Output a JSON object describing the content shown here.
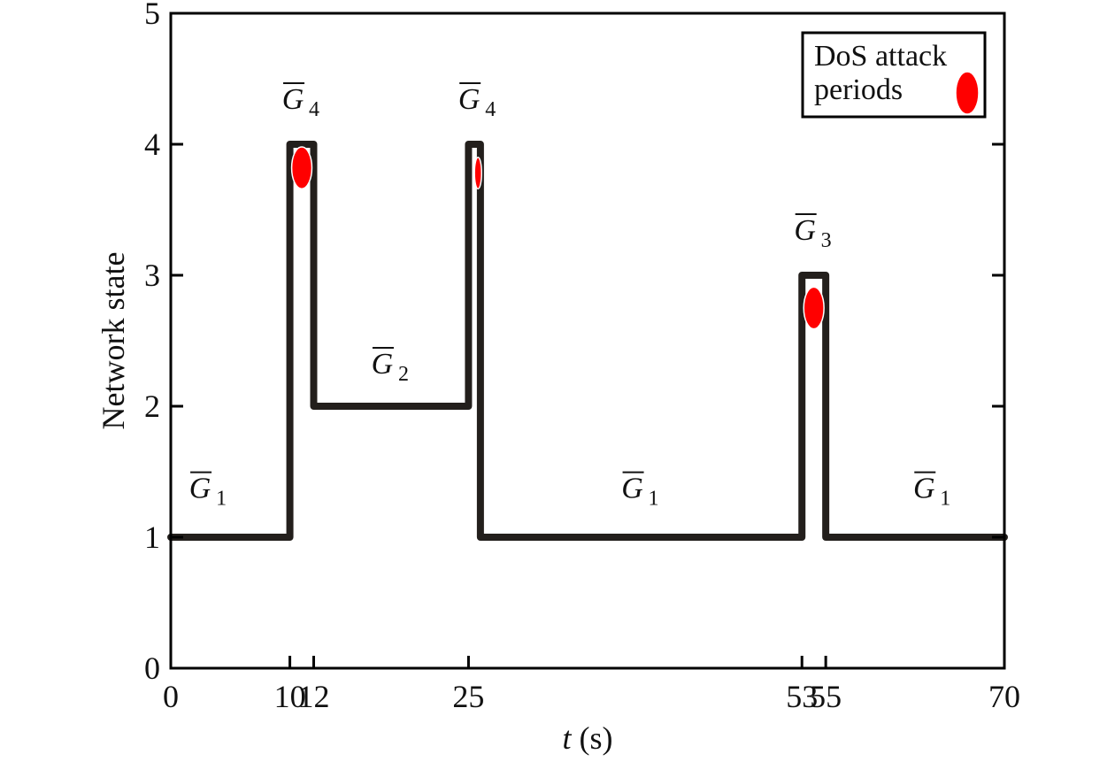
{
  "chart_data": {
    "type": "line",
    "title": "",
    "xlabel_var": "t",
    "xlabel_unit": " (s)",
    "ylabel": "Network state",
    "xlim": [
      0,
      70
    ],
    "ylim": [
      0,
      5
    ],
    "xticks": [
      0,
      10,
      12,
      25,
      53,
      55,
      70
    ],
    "xtick_labels": [
      "0",
      "10",
      "12",
      "25",
      "53",
      "55",
      "70"
    ],
    "yticks": [
      0,
      1,
      2,
      3,
      4,
      5
    ],
    "ytick_labels": [
      "0",
      "1",
      "2",
      "3",
      "4",
      "5"
    ],
    "grid": false,
    "series": [
      {
        "style": "step",
        "color": "#231f1c",
        "points": [
          [
            0,
            1
          ],
          [
            10,
            1
          ],
          [
            10,
            4
          ],
          [
            12,
            4
          ],
          [
            12,
            2
          ],
          [
            25,
            2
          ],
          [
            25,
            4
          ],
          [
            26,
            4
          ],
          [
            26,
            1
          ],
          [
            53,
            1
          ],
          [
            53,
            3
          ],
          [
            55,
            3
          ],
          [
            55,
            1
          ],
          [
            70,
            1
          ]
        ]
      }
    ],
    "dos_markers": [
      {
        "x": 11.0,
        "y": 3.82,
        "rx": 0.85,
        "ry": 0.16
      },
      {
        "x": 25.8,
        "y": 3.78,
        "rx": 0.3,
        "ry": 0.12
      },
      {
        "x": 54.0,
        "y": 2.75,
        "rx": 0.85,
        "ry": 0.16
      }
    ],
    "state_annotations": [
      {
        "x": 3.2,
        "y": 1.3,
        "letter": "G",
        "sub": "1"
      },
      {
        "x": 11.0,
        "y": 4.27,
        "letter": "G",
        "sub": "4"
      },
      {
        "x": 25.8,
        "y": 4.27,
        "letter": "G",
        "sub": "4"
      },
      {
        "x": 18.5,
        "y": 2.25,
        "letter": "G",
        "sub": "2"
      },
      {
        "x": 39.5,
        "y": 1.3,
        "letter": "G",
        "sub": "1"
      },
      {
        "x": 54.0,
        "y": 3.27,
        "letter": "G",
        "sub": "3"
      },
      {
        "x": 64.0,
        "y": 1.3,
        "letter": "G",
        "sub": "1"
      }
    ],
    "legend": {
      "position": "top-right",
      "line1": "DoS attack",
      "line2": "periods"
    },
    "colors": {
      "line": "#231f1c",
      "marker": "#ff0000",
      "marker_edge": "#ffffff",
      "axis": "#000000"
    }
  }
}
